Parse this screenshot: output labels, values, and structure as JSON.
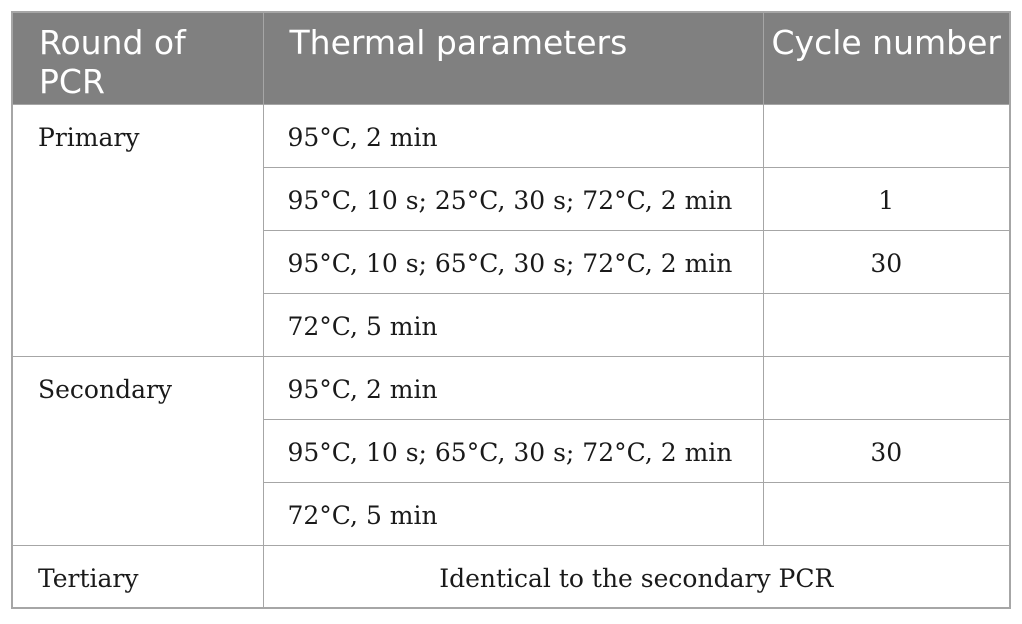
{
  "header": {
    "round": "Round of PCR",
    "params": "Thermal parameters",
    "cycle": "Cycle number"
  },
  "rows": [
    {
      "round": "Primary",
      "steps": [
        {
          "params": "95°C, 2 min",
          "cycle": ""
        },
        {
          "params": "95°C, 10 s; 25°C, 30 s; 72°C, 2 min",
          "cycle": "1"
        },
        {
          "params": "95°C, 10 s; 65°C, 30 s; 72°C, 2 min",
          "cycle": "30"
        },
        {
          "params": "72°C, 5 min",
          "cycle": ""
        }
      ]
    },
    {
      "round": "Secondary",
      "steps": [
        {
          "params": "95°C, 2 min",
          "cycle": ""
        },
        {
          "params": "95°C, 10 s; 65°C, 30 s; 72°C, 2 min",
          "cycle": "30"
        },
        {
          "params": "72°C, 5 min",
          "cycle": ""
        }
      ]
    },
    {
      "round": "Tertiary",
      "note": "Identical to the secondary PCR"
    }
  ]
}
